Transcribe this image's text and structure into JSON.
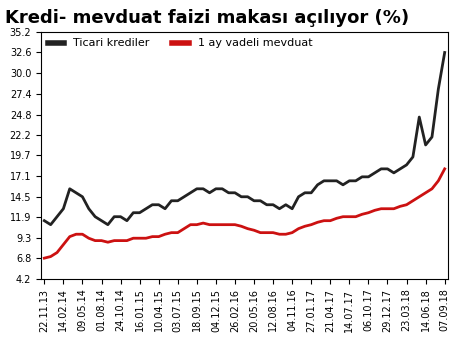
{
  "chart_data": {
    "type": "line",
    "title": "Kredi- mevduat faizi makası açılıyor (%)",
    "categories": [
      "22.11.13",
      null,
      null,
      "14.02.14",
      null,
      null,
      "09.05.14",
      null,
      null,
      "01.08.14",
      null,
      null,
      "24.10.14",
      null,
      null,
      "16.01.15",
      null,
      null,
      "10.04.15",
      null,
      null,
      "03.07.15",
      null,
      null,
      "18.09.15",
      null,
      null,
      "04.12.15",
      null,
      null,
      "26.02.16",
      null,
      null,
      "20.05.16",
      null,
      null,
      "12.08.16",
      null,
      null,
      "04.11.16",
      null,
      null,
      "27.01.17",
      null,
      null,
      "21.04.17",
      null,
      null,
      "14.07.17",
      null,
      null,
      "06.10.17",
      null,
      null,
      "29.12.17",
      null,
      null,
      "23.03.18",
      null,
      null,
      "14.06.18",
      null,
      null,
      "07.09.18"
    ],
    "series": [
      {
        "name": "Ticari krediler",
        "color": "#222222",
        "values": [
          11.5,
          11.0,
          12.0,
          13.0,
          15.5,
          15.0,
          14.5,
          13.0,
          12.0,
          11.5,
          11.0,
          12.0,
          12.0,
          11.5,
          12.5,
          12.5,
          13.0,
          13.5,
          13.5,
          13.0,
          14.0,
          14.0,
          14.5,
          15.0,
          15.5,
          15.5,
          15.0,
          15.5,
          15.5,
          15.0,
          15.0,
          14.5,
          14.5,
          14.0,
          14.0,
          13.5,
          13.5,
          13.0,
          13.5,
          13.0,
          14.5,
          15.0,
          15.0,
          16.0,
          16.5,
          16.5,
          16.5,
          16.0,
          16.5,
          16.5,
          17.0,
          17.0,
          17.5,
          18.0,
          18.0,
          17.5,
          18.0,
          18.5,
          19.5,
          24.5,
          21.0,
          22.0,
          28.0,
          32.6
        ]
      },
      {
        "name": "1 ay vadeli mevduat",
        "color": "#cc1111",
        "values": [
          6.8,
          7.0,
          7.5,
          8.5,
          9.5,
          9.8,
          9.8,
          9.3,
          9.0,
          9.0,
          8.8,
          9.0,
          9.0,
          9.0,
          9.3,
          9.3,
          9.3,
          9.5,
          9.5,
          9.8,
          10.0,
          10.0,
          10.5,
          11.0,
          11.0,
          11.2,
          11.0,
          11.0,
          11.0,
          11.0,
          11.0,
          10.8,
          10.5,
          10.3,
          10.0,
          10.0,
          10.0,
          9.8,
          9.8,
          10.0,
          10.5,
          10.8,
          11.0,
          11.3,
          11.5,
          11.5,
          11.8,
          12.0,
          12.0,
          12.0,
          12.3,
          12.5,
          12.8,
          13.0,
          13.0,
          13.0,
          13.3,
          13.5,
          14.0,
          14.5,
          15.0,
          15.5,
          16.5,
          18.0
        ]
      }
    ],
    "ylim": [
      4.2,
      35.2
    ],
    "yticks": [
      4.2,
      6.8,
      9.3,
      11.9,
      14.5,
      17.1,
      19.7,
      22.2,
      24.8,
      27.4,
      {
        "value": 30,
        "label": "30.0"
      },
      32.6,
      35.2
    ],
    "grid": false,
    "legend": "upper left"
  }
}
